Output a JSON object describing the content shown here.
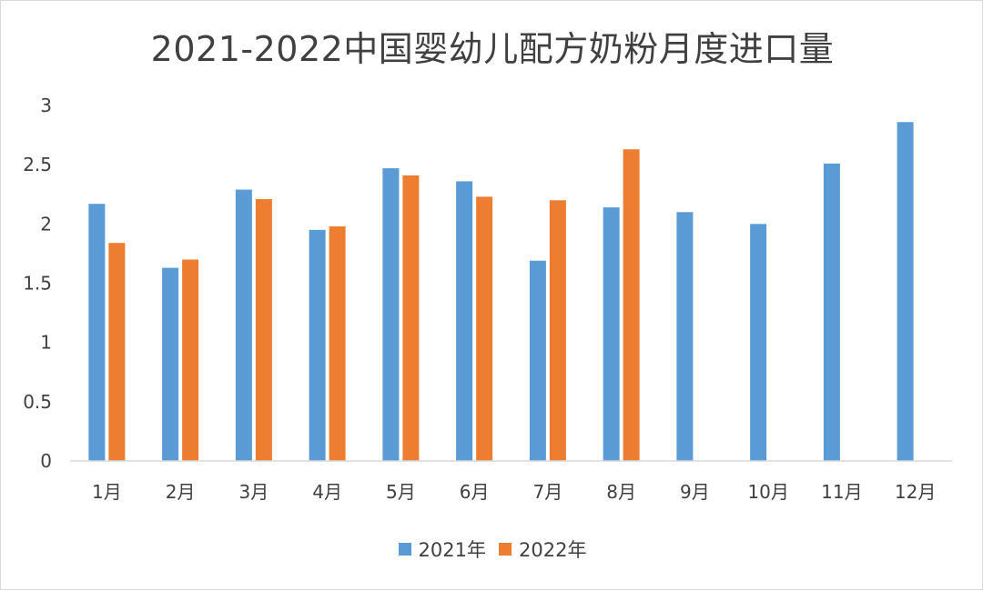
{
  "chart_data": {
    "type": "bar",
    "title": "2021-2022中国婴幼儿配方奶粉月度进口量",
    "categories": [
      "1月",
      "2月",
      "3月",
      "4月",
      "5月",
      "6月",
      "7月",
      "8月",
      "9月",
      "10月",
      "11月",
      "12月"
    ],
    "series": [
      {
        "name": "2021年",
        "color": "#5B9BD5",
        "values": [
          2.17,
          1.63,
          2.29,
          1.95,
          2.47,
          2.36,
          1.69,
          2.14,
          2.1,
          2.0,
          2.51,
          2.86
        ]
      },
      {
        "name": "2022年",
        "color": "#ED7D31",
        "values": [
          1.84,
          1.7,
          2.21,
          1.98,
          2.41,
          2.23,
          2.2,
          2.63,
          null,
          null,
          null,
          null
        ]
      }
    ],
    "ylim": [
      0,
      3
    ],
    "yticks": [
      "0",
      "0.5",
      "1",
      "1.5",
      "2",
      "2.5",
      "3"
    ],
    "grid": false,
    "legend_position": "bottom"
  }
}
